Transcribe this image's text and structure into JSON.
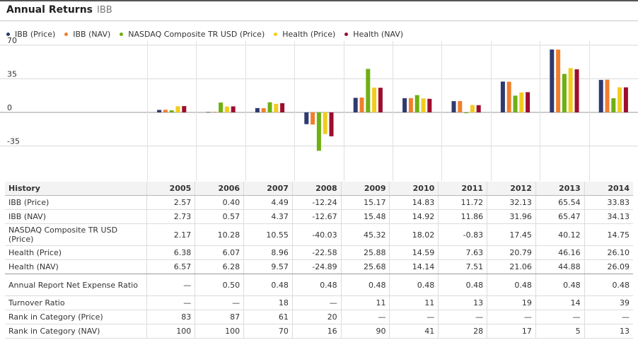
{
  "header": {
    "title": "Annual Returns",
    "ticker": "IBB"
  },
  "colors": {
    "IBB (Price)": "#2e3a6e",
    "IBB (NAV)": "#f07f2d",
    "NASDAQ Composite TR USD (Price)": "#6fb012",
    "Health (Price)": "#f2cc1d",
    "Health (NAV)": "#9c0d2e"
  },
  "chart_data": {
    "type": "bar",
    "title": "Annual Returns",
    "categories": [
      "2005",
      "2006",
      "2007",
      "2008",
      "2009",
      "2010",
      "2011",
      "2012",
      "2013",
      "2014"
    ],
    "series": [
      {
        "name": "IBB (Price)",
        "values": [
          2.57,
          0.4,
          4.49,
          -12.24,
          15.17,
          14.83,
          11.72,
          32.13,
          65.54,
          33.83
        ]
      },
      {
        "name": "IBB (NAV)",
        "values": [
          2.73,
          0.57,
          4.37,
          -12.67,
          15.48,
          14.92,
          11.86,
          31.96,
          65.47,
          34.13
        ]
      },
      {
        "name": "NASDAQ Composite TR USD (Price)",
        "values": [
          2.17,
          10.28,
          10.55,
          -40.03,
          45.32,
          18.02,
          -0.83,
          17.45,
          40.12,
          14.75
        ]
      },
      {
        "name": "Health (Price)",
        "values": [
          6.38,
          6.07,
          8.96,
          -22.58,
          25.88,
          14.59,
          7.63,
          20.79,
          46.16,
          26.1
        ]
      },
      {
        "name": "Health (NAV)",
        "values": [
          6.57,
          6.28,
          9.57,
          -24.89,
          25.68,
          14.14,
          7.51,
          21.06,
          44.88,
          26.09
        ]
      }
    ],
    "yticks": [
      70,
      35,
      0,
      -35
    ],
    "ylim": [
      -70,
      70
    ],
    "grid": true,
    "legend": "top-left"
  },
  "table": {
    "header": "History",
    "years": [
      "2005",
      "2006",
      "2007",
      "2008",
      "2009",
      "2010",
      "2011",
      "2012",
      "2013",
      "2014"
    ],
    "rows": [
      {
        "label": "IBB (Price)",
        "values": [
          "2.57",
          "0.40",
          "4.49",
          "-12.24",
          "15.17",
          "14.83",
          "11.72",
          "32.13",
          "65.54",
          "33.83"
        ]
      },
      {
        "label": "IBB (NAV)",
        "values": [
          "2.73",
          "0.57",
          "4.37",
          "-12.67",
          "15.48",
          "14.92",
          "11.86",
          "31.96",
          "65.47",
          "34.13"
        ]
      },
      {
        "label": "NASDAQ Composite TR USD (Price)",
        "values": [
          "2.17",
          "10.28",
          "10.55",
          "-40.03",
          "45.32",
          "18.02",
          "-0.83",
          "17.45",
          "40.12",
          "14.75"
        ]
      },
      {
        "label": "Health (Price)",
        "values": [
          "6.38",
          "6.07",
          "8.96",
          "-22.58",
          "25.88",
          "14.59",
          "7.63",
          "20.79",
          "46.16",
          "26.10"
        ]
      },
      {
        "label": "Health (NAV)",
        "values": [
          "6.57",
          "6.28",
          "9.57",
          "-24.89",
          "25.68",
          "14.14",
          "7.51",
          "21.06",
          "44.88",
          "26.09"
        ]
      },
      {
        "label": "Annual Report Net Expense Ratio",
        "values": [
          "—",
          "0.50",
          "0.48",
          "0.48",
          "0.48",
          "0.48",
          "0.48",
          "0.48",
          "0.48",
          "0.48"
        ]
      },
      {
        "label": "Turnover Ratio",
        "values": [
          "—",
          "—",
          "18",
          "—",
          "11",
          "11",
          "13",
          "19",
          "14",
          "39"
        ]
      },
      {
        "label": "Rank in Category (Price)",
        "values": [
          "83",
          "87",
          "61",
          "20",
          "—",
          "—",
          "—",
          "—",
          "—",
          "—"
        ]
      },
      {
        "label": "Rank in Category (NAV)",
        "values": [
          "100",
          "100",
          "70",
          "16",
          "90",
          "41",
          "28",
          "17",
          "5",
          "13"
        ]
      }
    ]
  }
}
